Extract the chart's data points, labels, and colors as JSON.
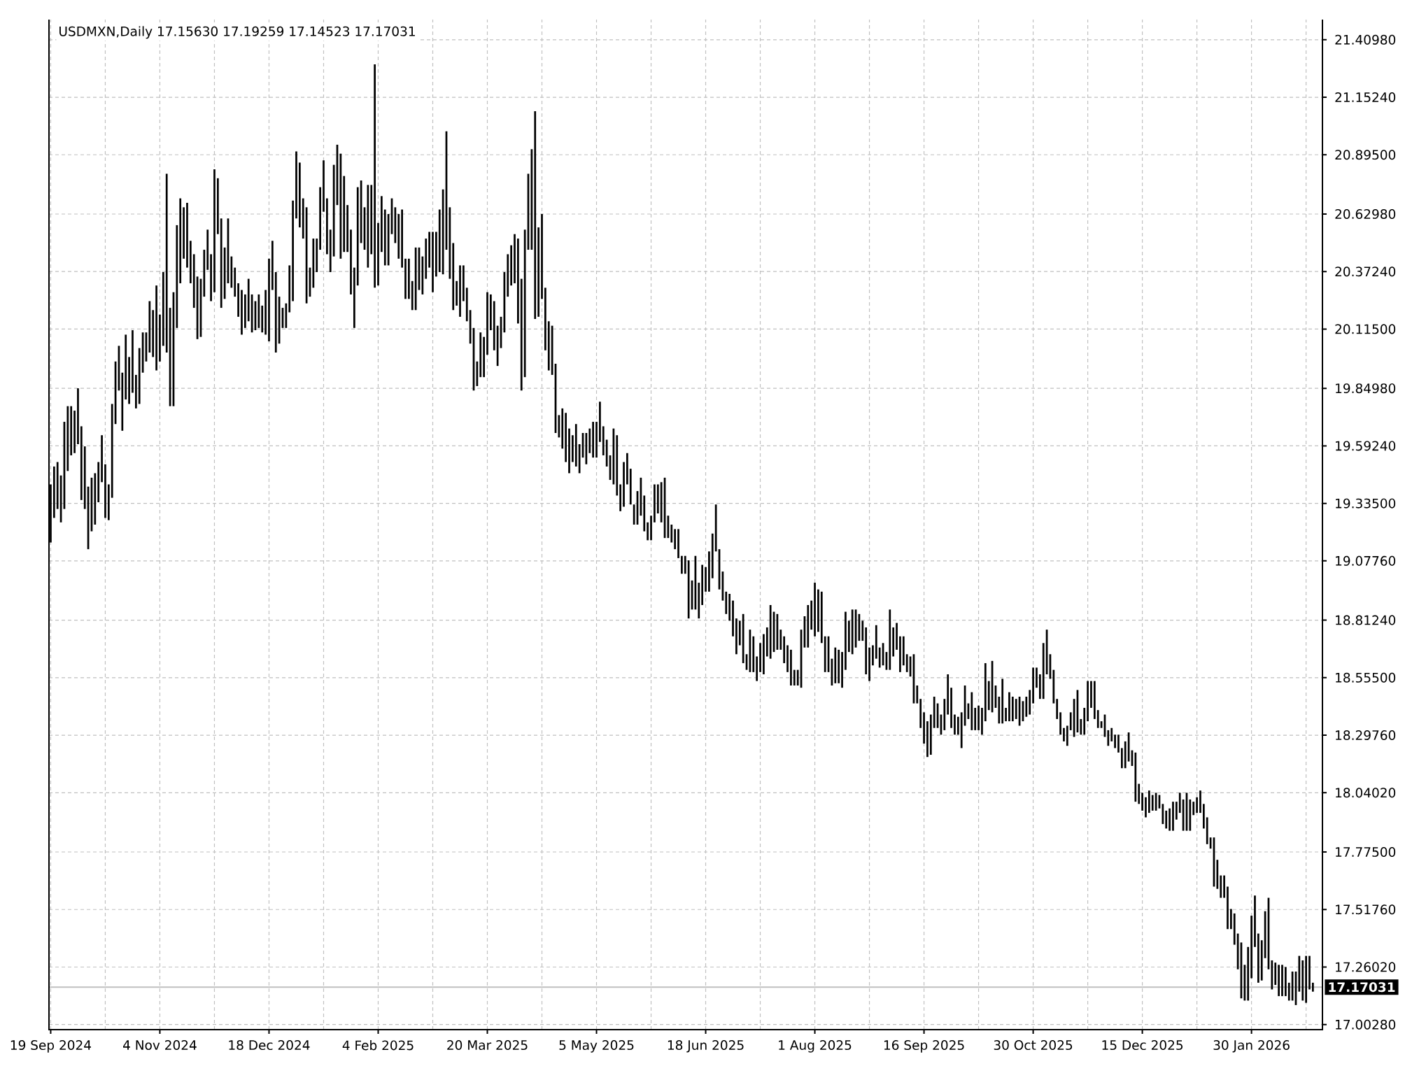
{
  "chart_data": {
    "type": "bar",
    "title": "USDMXN,Daily 17.15630 17.19259 17.14523 17.17031",
    "categories": [
      "19 Sep 2024",
      null,
      null,
      null,
      null,
      null,
      null,
      null,
      null,
      null,
      null,
      null,
      null,
      null,
      null,
      null,
      null,
      null,
      null,
      null,
      null,
      null,
      null,
      null,
      null,
      null,
      null,
      null,
      null,
      null,
      null,
      null,
      "4 Nov 2024",
      null,
      null,
      null,
      null,
      null,
      null,
      null,
      null,
      null,
      null,
      null,
      null,
      null,
      null,
      null,
      null,
      null,
      null,
      null,
      null,
      null,
      null,
      null,
      null,
      null,
      null,
      null,
      null,
      null,
      null,
      null,
      "18 Dec 2024",
      null,
      null,
      null,
      null,
      null,
      null,
      null,
      null,
      null,
      null,
      null,
      null,
      null,
      null,
      null,
      null,
      null,
      null,
      null,
      null,
      null,
      null,
      null,
      null,
      null,
      null,
      null,
      null,
      null,
      null,
      null,
      "4 Feb 2025",
      null,
      null,
      null,
      null,
      null,
      null,
      null,
      null,
      null,
      null,
      null,
      null,
      null,
      null,
      null,
      null,
      null,
      null,
      null,
      null,
      null,
      null,
      null,
      null,
      null,
      null,
      null,
      null,
      null,
      null,
      null,
      "20 Mar 2025",
      null,
      null,
      null,
      null,
      null,
      null,
      null,
      null,
      null,
      null,
      null,
      null,
      null,
      null,
      null,
      null,
      null,
      null,
      null,
      null,
      null,
      null,
      null,
      null,
      null,
      null,
      null,
      null,
      null,
      null,
      null,
      "5 May 2025",
      null,
      null,
      null,
      null,
      null,
      null,
      null,
      null,
      null,
      null,
      null,
      null,
      null,
      null,
      null,
      null,
      null,
      null,
      null,
      null,
      null,
      null,
      null,
      null,
      null,
      null,
      null,
      null,
      null,
      null,
      null,
      "18 Jun 2025",
      null,
      null,
      null,
      null,
      null,
      null,
      null,
      null,
      null,
      null,
      null,
      null,
      null,
      null,
      null,
      null,
      null,
      null,
      null,
      null,
      null,
      null,
      null,
      null,
      null,
      null,
      null,
      null,
      null,
      null,
      null,
      "1 Aug 2025",
      null,
      null,
      null,
      null,
      null,
      null,
      null,
      null,
      null,
      null,
      null,
      null,
      null,
      null,
      null,
      null,
      null,
      null,
      null,
      null,
      null,
      null,
      null,
      null,
      null,
      null,
      null,
      null,
      null,
      null,
      null,
      "16 Sep 2025",
      null,
      null,
      null,
      null,
      null,
      null,
      null,
      null,
      null,
      null,
      null,
      null,
      null,
      null,
      null,
      null,
      null,
      null,
      null,
      null,
      null,
      null,
      null,
      null,
      null,
      null,
      null,
      null,
      null,
      null,
      null,
      "30 Oct 2025",
      null,
      null,
      null,
      null,
      null,
      null,
      null,
      null,
      null,
      null,
      null,
      null,
      null,
      null,
      null,
      null,
      null,
      null,
      null,
      null,
      null,
      null,
      null,
      null,
      null,
      null,
      null,
      null,
      null,
      null,
      null,
      "15 Dec 2025",
      null,
      null,
      null,
      null,
      null,
      null,
      null,
      null,
      null,
      null,
      null,
      null,
      null,
      null,
      null,
      null,
      null,
      null,
      null,
      null,
      null,
      null,
      null,
      null,
      null,
      null,
      null,
      null,
      null,
      null,
      null,
      "30 Jan 2026",
      null,
      null,
      null,
      null,
      null,
      null,
      null,
      null,
      null,
      null,
      null,
      null,
      null,
      null,
      null,
      null,
      null,
      null
    ],
    "base": [
      19.16,
      19.27,
      19.31,
      19.25,
      19.31,
      19.48,
      19.55,
      19.56,
      19.6,
      19.35,
      19.31,
      19.13,
      19.21,
      19.24,
      19.34,
      19.43,
      19.27,
      19.26,
      19.36,
      19.69,
      19.84,
      19.66,
      19.8,
      19.78,
      19.83,
      19.76,
      19.78,
      19.92,
      19.97,
      20.01,
      19.99,
      19.93,
      19.97,
      20.04,
      20.01,
      19.77,
      19.77,
      20.12,
      20.32,
      20.43,
      20.39,
      20.32,
      20.21,
      20.07,
      20.08,
      20.26,
      20.38,
      20.24,
      20.28,
      20.54,
      20.21,
      20.25,
      20.32,
      20.3,
      20.26,
      20.17,
      20.09,
      20.12,
      20.15,
      20.1,
      20.11,
      20.12,
      20.1,
      20.09,
      20.06,
      20.29,
      20.01,
      20.05,
      20.12,
      20.12,
      20.19,
      20.24,
      20.61,
      20.57,
      20.52,
      20.23,
      20.26,
      20.3,
      20.37,
      20.47,
      20.64,
      20.45,
      20.37,
      20.44,
      20.67,
      20.43,
      20.46,
      20.46,
      20.27,
      20.12,
      20.31,
      20.5,
      20.47,
      20.39,
      20.45,
      20.3,
      20.31,
      20.46,
      20.4,
      20.4,
      20.54,
      20.5,
      20.43,
      20.39,
      20.25,
      20.25,
      20.2,
      20.2,
      20.29,
      20.27,
      20.34,
      20.39,
      20.28,
      20.35,
      20.37,
      20.36,
      20.47,
      20.34,
      20.2,
      20.22,
      20.17,
      20.24,
      20.15,
      20.05,
      19.84,
      19.86,
      19.9,
      19.9,
      20.0,
      20.11,
      20.02,
      19.95,
      20.03,
      20.1,
      20.26,
      20.31,
      20.32,
      20.14,
      19.84,
      19.9,
      20.47,
      20.47,
      20.16,
      20.17,
      20.25,
      20.02,
      19.93,
      19.91,
      19.65,
      19.63,
      19.58,
      19.52,
      19.47,
      19.52,
      19.5,
      19.47,
      19.54,
      19.51,
      19.56,
      19.54,
      19.54,
      19.61,
      19.55,
      19.5,
      19.44,
      19.42,
      19.37,
      19.3,
      19.32,
      19.42,
      19.33,
      19.24,
      19.24,
      19.28,
      19.21,
      19.17,
      19.17,
      19.25,
      19.29,
      19.25,
      19.18,
      19.18,
      19.16,
      19.13,
      19.09,
      19.02,
      19.02,
      18.82,
      18.86,
      18.86,
      18.82,
      18.88,
      18.94,
      18.94,
      19.0,
      19.12,
      18.95,
      18.9,
      18.84,
      18.81,
      18.74,
      18.66,
      18.7,
      18.62,
      18.59,
      18.58,
      18.58,
      18.54,
      18.58,
      18.57,
      18.65,
      18.64,
      18.67,
      18.68,
      18.68,
      18.62,
      18.58,
      18.52,
      18.52,
      18.52,
      18.51,
      18.69,
      18.69,
      18.77,
      18.74,
      18.76,
      18.71,
      18.58,
      18.58,
      18.52,
      18.53,
      18.53,
      18.51,
      18.59,
      18.67,
      18.66,
      18.69,
      18.72,
      18.72,
      18.57,
      18.54,
      18.61,
      18.64,
      18.6,
      18.61,
      18.59,
      18.59,
      18.65,
      18.68,
      18.58,
      18.61,
      18.58,
      18.56,
      18.44,
      18.44,
      18.33,
      18.26,
      18.2,
      18.21,
      18.33,
      18.33,
      18.3,
      18.32,
      18.39,
      18.33,
      18.3,
      18.3,
      18.24,
      18.34,
      18.37,
      18.32,
      18.32,
      18.32,
      18.3,
      18.36,
      18.41,
      18.4,
      18.42,
      18.35,
      18.35,
      18.36,
      18.36,
      18.36,
      18.37,
      18.34,
      18.36,
      18.38,
      18.39,
      18.44,
      18.51,
      18.46,
      18.46,
      18.57,
      18.55,
      18.44,
      18.37,
      18.3,
      18.27,
      18.25,
      18.32,
      18.29,
      18.31,
      18.3,
      18.3,
      18.36,
      18.42,
      18.37,
      18.33,
      18.33,
      18.29,
      18.25,
      18.27,
      18.24,
      18.22,
      18.15,
      18.15,
      18.18,
      18.16,
      18.0,
      17.99,
      17.96,
      17.93,
      17.95,
      17.96,
      17.96,
      17.97,
      17.9,
      17.88,
      17.87,
      17.87,
      17.92,
      17.95,
      17.87,
      17.87,
      17.87,
      17.94,
      17.95,
      17.95,
      17.88,
      17.81,
      17.79,
      17.62,
      17.61,
      17.57,
      17.57,
      17.43,
      17.43,
      17.36,
      17.25,
      17.12,
      17.11,
      17.11,
      17.21,
      17.35,
      17.19,
      17.2,
      17.3,
      17.25,
      17.16,
      17.18,
      17.13,
      17.13,
      17.13,
      17.11,
      17.11,
      17.09,
      17.15,
      17.11,
      17.1,
      17.16,
      17.15
    ],
    "values": [
      0.26,
      0.23,
      0.21,
      0.21,
      0.39,
      0.29,
      0.22,
      0.19,
      0.25,
      0.33,
      0.28,
      0.28,
      0.24,
      0.23,
      0.18,
      0.21,
      0.24,
      0.16,
      0.42,
      0.28,
      0.2,
      0.26,
      0.29,
      0.21,
      0.28,
      0.15,
      0.25,
      0.18,
      0.13,
      0.23,
      0.21,
      0.38,
      0.21,
      0.33,
      0.8,
      0.44,
      0.51,
      0.46,
      0.38,
      0.23,
      0.29,
      0.19,
      0.24,
      0.28,
      0.26,
      0.21,
      0.18,
      0.21,
      0.55,
      0.25,
      0.4,
      0.23,
      0.29,
      0.14,
      0.13,
      0.15,
      0.2,
      0.15,
      0.19,
      0.17,
      0.13,
      0.15,
      0.12,
      0.2,
      0.37,
      0.22,
      0.36,
      0.21,
      0.09,
      0.11,
      0.21,
      0.45,
      0.3,
      0.29,
      0.18,
      0.43,
      0.13,
      0.22,
      0.15,
      0.28,
      0.23,
      0.25,
      0.19,
      0.41,
      0.27,
      0.47,
      0.34,
      0.21,
      0.29,
      0.27,
      0.44,
      0.28,
      0.19,
      0.37,
      0.31,
      1.0,
      0.28,
      0.25,
      0.25,
      0.23,
      0.16,
      0.16,
      0.2,
      0.26,
      0.18,
      0.18,
      0.13,
      0.28,
      0.19,
      0.17,
      0.18,
      0.16,
      0.27,
      0.2,
      0.28,
      0.38,
      0.53,
      0.32,
      0.3,
      0.11,
      0.23,
      0.16,
      0.15,
      0.15,
      0.28,
      0.11,
      0.2,
      0.18,
      0.28,
      0.16,
      0.22,
      0.18,
      0.14,
      0.27,
      0.19,
      0.18,
      0.22,
      0.38,
      0.5,
      0.66,
      0.34,
      0.45,
      0.93,
      0.4,
      0.38,
      0.28,
      0.22,
      0.22,
      0.31,
      0.1,
      0.18,
      0.22,
      0.2,
      0.12,
      0.19,
      0.13,
      0.11,
      0.14,
      0.11,
      0.16,
      0.16,
      0.18,
      0.13,
      0.12,
      0.11,
      0.25,
      0.27,
      0.12,
      0.2,
      0.14,
      0.16,
      0.09,
      0.15,
      0.17,
      0.16,
      0.08,
      0.11,
      0.17,
      0.13,
      0.18,
      0.27,
      0.1,
      0.08,
      0.09,
      0.13,
      0.08,
      0.08,
      0.26,
      0.13,
      0.24,
      0.16,
      0.18,
      0.11,
      0.18,
      0.2,
      0.21,
      0.18,
      0.13,
      0.1,
      0.12,
      0.16,
      0.16,
      0.11,
      0.22,
      0.07,
      0.19,
      0.16,
      0.11,
      0.13,
      0.18,
      0.13,
      0.24,
      0.18,
      0.16,
      0.09,
      0.12,
      0.12,
      0.16,
      0.07,
      0.07,
      0.26,
      0.14,
      0.19,
      0.13,
      0.24,
      0.19,
      0.23,
      0.16,
      0.16,
      0.12,
      0.16,
      0.15,
      0.16,
      0.26,
      0.14,
      0.2,
      0.17,
      0.12,
      0.09,
      0.21,
      0.15,
      0.09,
      0.15,
      0.09,
      0.1,
      0.08,
      0.27,
      0.13,
      0.12,
      0.16,
      0.13,
      0.08,
      0.09,
      0.22,
      0.08,
      0.13,
      0.14,
      0.16,
      0.18,
      0.14,
      0.11,
      0.09,
      0.14,
      0.18,
      0.18,
      0.09,
      0.08,
      0.16,
      0.18,
      0.07,
      0.17,
      0.1,
      0.11,
      0.12,
      0.26,
      0.13,
      0.23,
      0.1,
      0.12,
      0.2,
      0.06,
      0.13,
      0.11,
      0.09,
      0.13,
      0.09,
      0.09,
      0.11,
      0.16,
      0.09,
      0.11,
      0.25,
      0.2,
      0.11,
      0.15,
      0.09,
      0.1,
      0.06,
      0.09,
      0.08,
      0.17,
      0.19,
      0.07,
      0.12,
      0.18,
      0.12,
      0.17,
      0.08,
      0.03,
      0.1,
      0.07,
      0.06,
      0.06,
      0.08,
      0.09,
      0.12,
      0.13,
      0.07,
      0.22,
      0.09,
      0.08,
      0.09,
      0.1,
      0.07,
      0.08,
      0.06,
      0.09,
      0.08,
      0.1,
      0.13,
      0.08,
      0.09,
      0.14,
      0.17,
      0.14,
      0.06,
      0.07,
      0.1,
      0.11,
      0.12,
      0.05,
      0.22,
      0.13,
      0.1,
      0.1,
      0.19,
      0.09,
      0.14,
      0.16,
      0.25,
      0.16,
      0.24,
      0.28,
      0.23,
      0.22,
      0.18,
      0.21,
      0.32,
      0.13,
      0.1,
      0.14,
      0.14,
      0.13,
      0.08,
      0.13,
      0.15,
      0.16,
      0.18,
      0.21,
      0.15,
      0.04
    ],
    "color": "#000000",
    "ylim": [
      16.98,
      21.5
    ],
    "yticks": [
      {
        "value": 21.4098,
        "label": "21.40980"
      },
      {
        "value": 21.1524,
        "label": "21.15240"
      },
      {
        "value": 20.895,
        "label": "20.89500"
      },
      {
        "value": 20.6298,
        "label": "20.62980"
      },
      {
        "value": 20.3724,
        "label": "20.37240"
      },
      {
        "value": 20.115,
        "label": "20.11500"
      },
      {
        "value": 19.8498,
        "label": "19.84980"
      },
      {
        "value": 19.5924,
        "label": "19.59240"
      },
      {
        "value": 19.335,
        "label": "19.33500"
      },
      {
        "value": 19.0776,
        "label": "19.07760"
      },
      {
        "value": 18.8124,
        "label": "18.81240"
      },
      {
        "value": 18.555,
        "label": "18.55500"
      },
      {
        "value": 18.2976,
        "label": "18.29760"
      },
      {
        "value": 18.0402,
        "label": "18.04020"
      },
      {
        "value": 17.775,
        "label": "17.77500"
      },
      {
        "value": 17.5176,
        "label": "17.51760"
      },
      {
        "value": 17.2602,
        "label": "17.26020"
      },
      {
        "value": 17.0028,
        "label": "17.00280"
      }
    ],
    "grid": true,
    "ref_lines": [
      {
        "axis": "y",
        "value": 17.17031,
        "label": "17.17031",
        "color": "#c0c0c0",
        "line_style": "solid"
      }
    ]
  }
}
